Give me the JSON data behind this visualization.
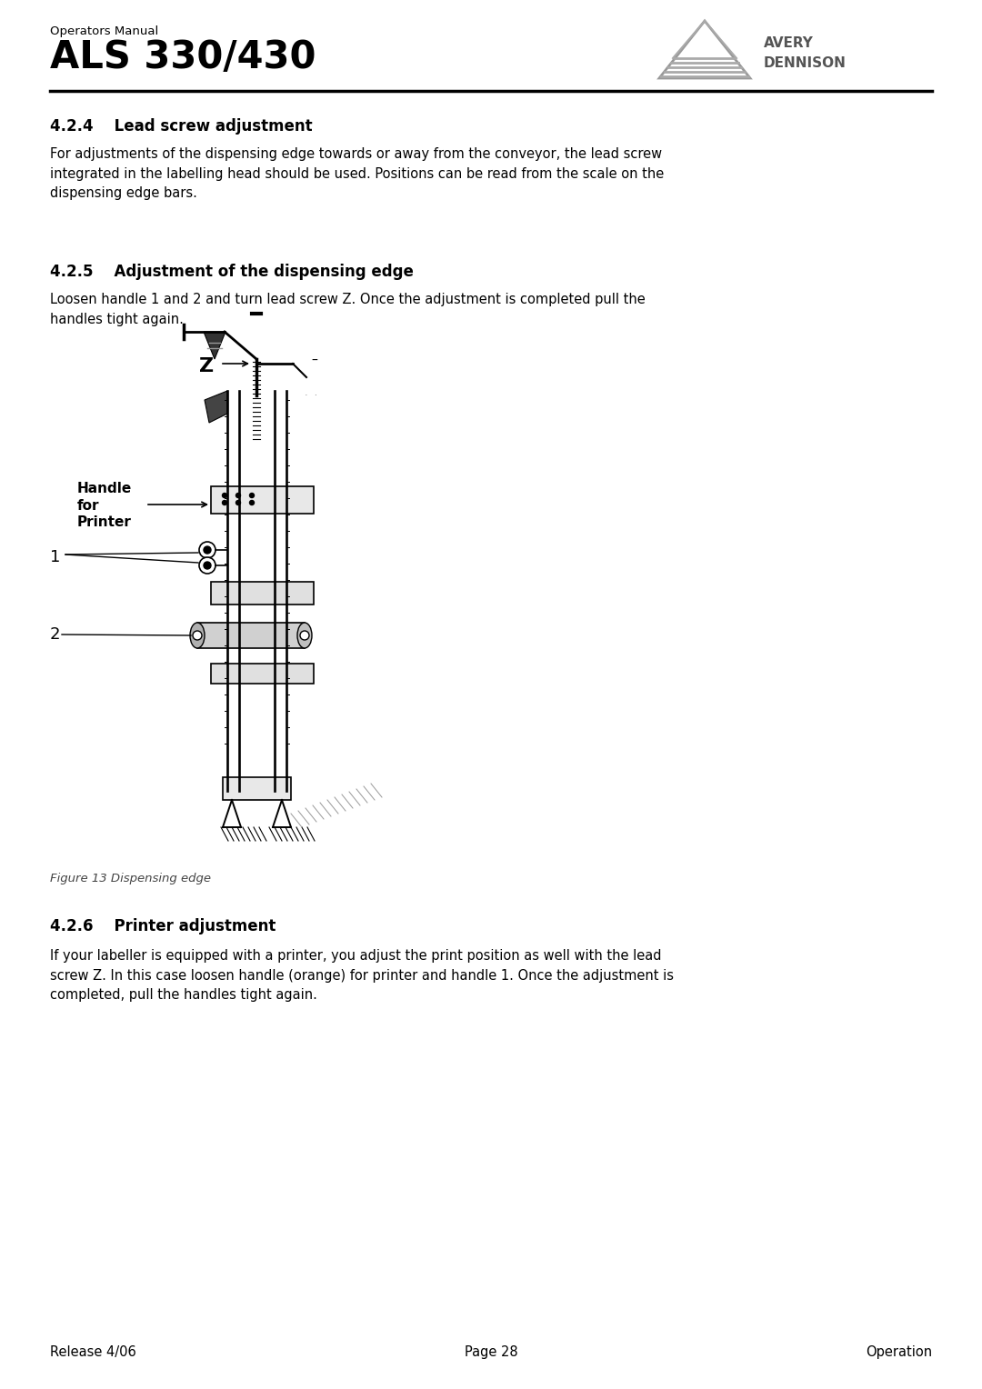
{
  "page_bg": "#ffffff",
  "header_operators_manual": "Operators Manual",
  "header_title": "ALS 330/430",
  "header_line_color": "#000000",
  "section_424_title": "4.2.4    Lead screw adjustment",
  "section_424_body": "For adjustments of the dispensing edge towards or away from the conveyor, the lead screw\nintegrated in the labelling head should be used. Positions can be read from the scale on the\ndispensing edge bars.",
  "section_425_title": "4.2.5    Adjustment of the dispensing edge",
  "section_425_body": "Loosen handle 1 and 2 and turn lead screw Z. Once the adjustment is completed pull the\nhandles tight again.",
  "figure_caption": "Figure 13 Dispensing edge",
  "section_426_title": "4.2.6    Printer adjustment",
  "section_426_body": "If your labeller is equipped with a printer, you adjust the print position as well with the lead\nscrew Z. In this case loosen handle (orange) for printer and handle 1. Once the adjustment is\ncompleted, pull the handles tight again.",
  "footer_left": "Release 4/06",
  "footer_center": "Page 28",
  "footer_right": "Operation",
  "text_color": "#000000",
  "body_font_size": 10.5,
  "title_font_size": 12,
  "header_title_font_size": 28,
  "header_small_font_size": 10,
  "footer_font_size": 10.5
}
